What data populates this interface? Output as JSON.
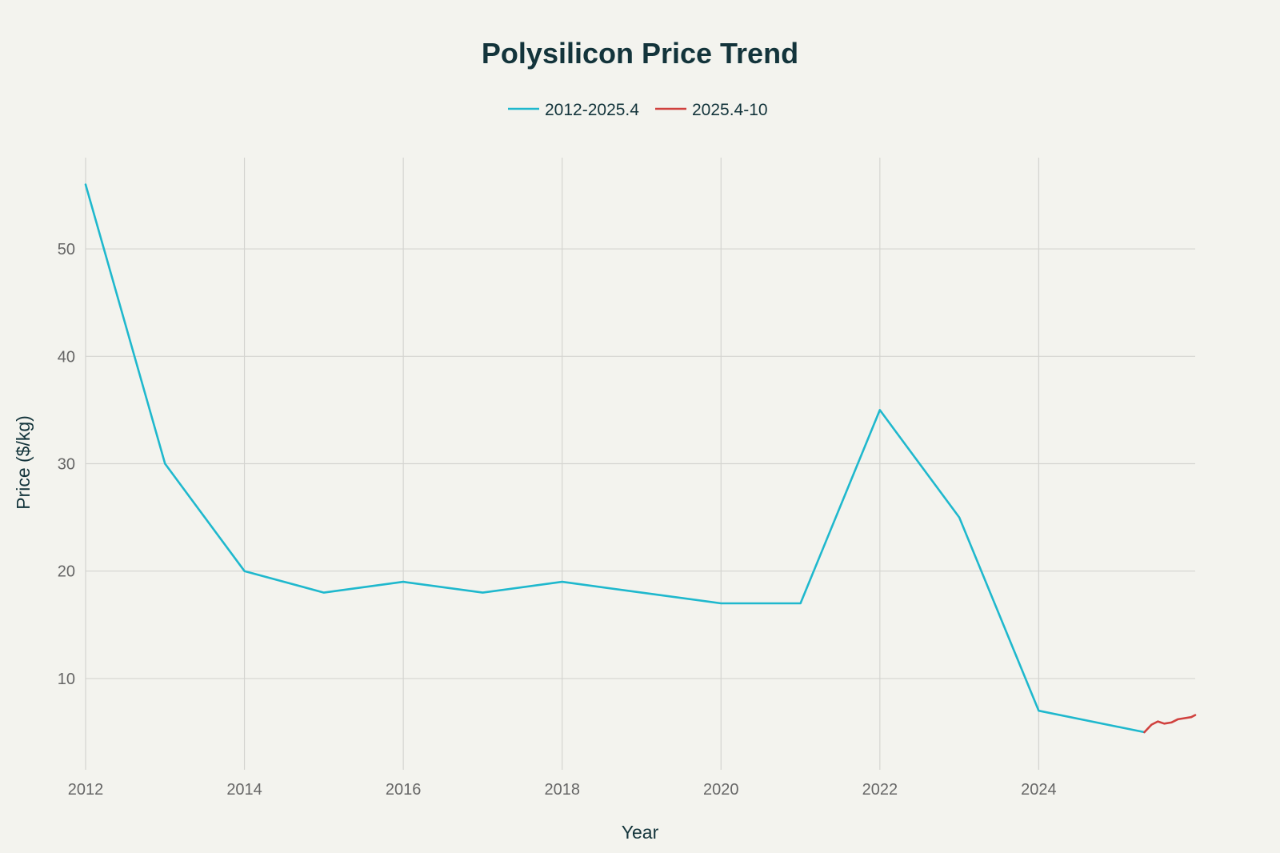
{
  "chart_data": {
    "type": "line",
    "title": "Polysilicon Price Trend",
    "xlabel": "Year",
    "ylabel": "Price ($/kg)",
    "xlim": [
      2012,
      2025.97
    ],
    "ylim": [
      1.5,
      58.5
    ],
    "x_ticks": [
      2012,
      2014,
      2016,
      2018,
      2020,
      2022,
      2024
    ],
    "y_ticks": [
      10,
      20,
      30,
      40,
      50
    ],
    "grid": true,
    "legend_position": "top-center",
    "series": [
      {
        "name": "2012-2025.4",
        "color": "#1fb8cd",
        "x": [
          2012,
          2013,
          2014,
          2015,
          2016,
          2017,
          2018,
          2019,
          2020,
          2021,
          2022,
          2023,
          2024,
          2025.33
        ],
        "y": [
          56,
          30,
          20,
          18,
          19,
          18,
          19,
          18,
          17,
          17,
          35,
          25,
          7,
          5
        ]
      },
      {
        "name": "2025.4-10",
        "color": "#d0413e",
        "x": [
          2025.33,
          2025.42,
          2025.5,
          2025.58,
          2025.67,
          2025.75,
          2025.83,
          2025.92,
          2025.97
        ],
        "y": [
          5,
          5.7,
          6.0,
          5.8,
          5.9,
          6.2,
          6.3,
          6.4,
          6.6
        ]
      }
    ]
  }
}
